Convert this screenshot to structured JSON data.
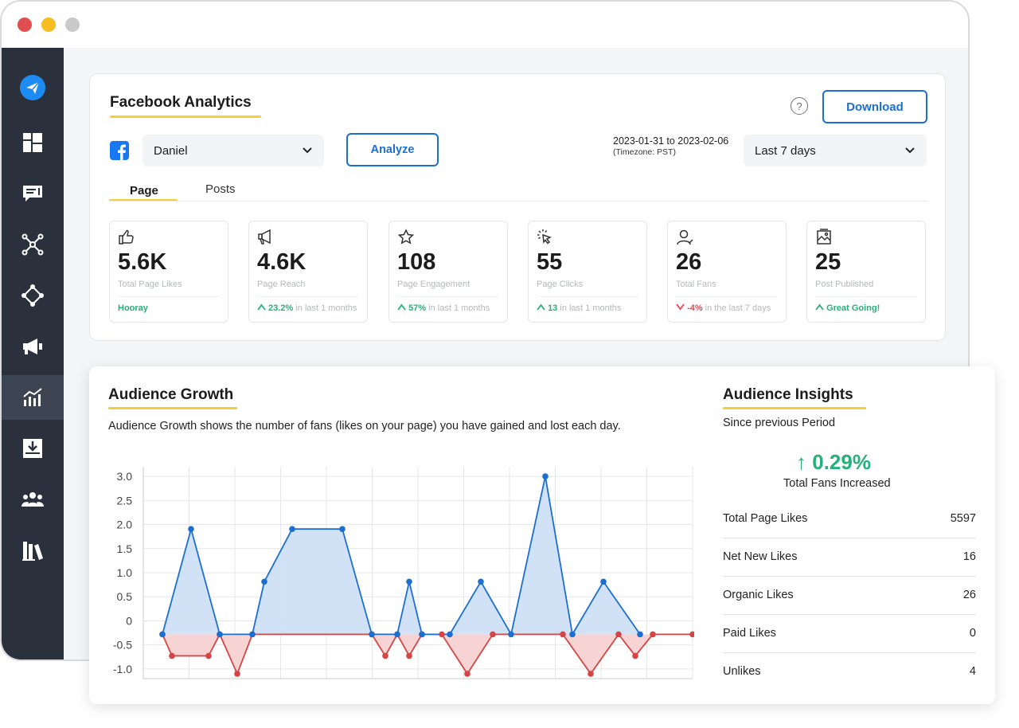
{
  "header": {
    "title": "Facebook Analytics",
    "help": "?",
    "download_label": "Download"
  },
  "filters": {
    "account": "Daniel",
    "analyze_label": "Analyze",
    "date_range": "2023-01-31 to 2023-02-06",
    "timezone": "(Timezone: PST)",
    "period": "Last 7 days"
  },
  "tabs": [
    {
      "label": "Page",
      "active": true
    },
    {
      "label": "Posts",
      "active": false
    }
  ],
  "stats": [
    {
      "icon": "thumbs-up-icon",
      "value": "5.6K",
      "label": "Total Page Likes",
      "foot_strong": "Hooray",
      "foot_rest": "",
      "trend": "none"
    },
    {
      "icon": "megaphone-icon",
      "value": "4.6K",
      "label": "Page Reach",
      "foot_strong": "23.2%",
      "foot_rest": " in last 1 months",
      "trend": "up"
    },
    {
      "icon": "star-icon",
      "value": "108",
      "label": "Page Engagement",
      "foot_strong": "57%",
      "foot_rest": " in last 1 months",
      "trend": "up"
    },
    {
      "icon": "cursor-click-icon",
      "value": "55",
      "label": "Page Clicks",
      "foot_strong": "13",
      "foot_rest": " in last 1 months",
      "trend": "up"
    },
    {
      "icon": "user-icon",
      "value": "26",
      "label": "Total Fans",
      "foot_strong": "-4%",
      "foot_rest": " in the last 7 days",
      "trend": "down"
    },
    {
      "icon": "image-icon",
      "value": "25",
      "label": "Post Published",
      "foot_strong": "Great Going!",
      "foot_rest": "",
      "trend": "none"
    }
  ],
  "audience_growth": {
    "title": "Audience Growth",
    "description": "Audience Growth shows the number of fans (likes on your page) you have gained and lost each day."
  },
  "chart_data": {
    "type": "area",
    "title": "",
    "xlabel": "",
    "ylabel": "",
    "ylim": [
      -1.0,
      3.0
    ],
    "y_tick_labels": [
      "3.0",
      "2.5",
      "2.0",
      "1.5",
      "1.0",
      "0.5",
      "0",
      "-0.5",
      "-1.0"
    ],
    "grid": true,
    "legend": "none",
    "x": [
      0,
      1,
      2,
      3,
      4,
      5,
      6,
      7,
      8,
      9,
      10,
      11,
      12,
      13,
      14,
      15,
      16,
      17,
      18,
      19,
      20,
      21,
      22,
      23,
      24,
      25,
      26,
      27,
      28,
      29,
      30,
      31,
      32,
      33,
      34
    ],
    "series": [
      {
        "color": "#1b6fd1",
        "fill": "#cfe0f7",
        "values": [
          0,
          2,
          0,
          null,
          0,
          1,
          2,
          2,
          0,
          null,
          0,
          1,
          0,
          null,
          0,
          1,
          0,
          null,
          0,
          3,
          0,
          1,
          0,
          null,
          null,
          null,
          null,
          null,
          null,
          null,
          null,
          null,
          null,
          null,
          null
        ]
      },
      {
        "color": "#d64545",
        "fill": "#f8d3d3",
        "values": [
          0,
          -0.6,
          -0.6,
          0,
          -1.1,
          0,
          0,
          -0.6,
          0,
          -0.6,
          0,
          0,
          -1.1,
          0,
          0,
          0,
          -1.1,
          0,
          -0.6,
          0,
          0,
          0,
          null,
          null,
          null,
          null,
          null,
          null,
          null,
          null,
          null,
          null,
          null,
          null,
          null
        ]
      }
    ]
  },
  "audience_insights": {
    "title": "Audience Insights",
    "subtitle": "Since previous Period",
    "arrow": "↑",
    "percent": "0.29%",
    "percent_label": "Total Fans Increased",
    "rows": [
      {
        "label": "Total Page Likes",
        "value": "5597"
      },
      {
        "label": "Net New Likes",
        "value": "16"
      },
      {
        "label": "Organic Likes",
        "value": "26"
      },
      {
        "label": "Paid Likes",
        "value": "0"
      },
      {
        "label": "Unlikes",
        "value": "4"
      }
    ]
  },
  "colors": {
    "sidebar": "#2b313c",
    "accent": "#1b6fd1",
    "underline": "#f4cf3a",
    "positive": "#27b07a",
    "negative": "#e5484d"
  },
  "sidebar": {
    "items": [
      {
        "icon": "paper-plane-icon",
        "active": false
      },
      {
        "icon": "dashboard-icon",
        "active": false
      },
      {
        "icon": "message-icon",
        "active": false
      },
      {
        "icon": "network-icon",
        "active": false
      },
      {
        "icon": "nodes-icon",
        "active": false
      },
      {
        "icon": "megaphone-icon",
        "active": false
      },
      {
        "icon": "analytics-icon",
        "active": true
      },
      {
        "icon": "inbox-download-icon",
        "active": false
      },
      {
        "icon": "team-icon",
        "active": false
      },
      {
        "icon": "library-icon",
        "active": false
      }
    ]
  }
}
